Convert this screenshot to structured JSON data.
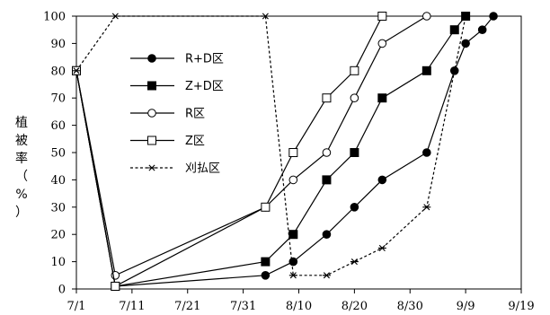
{
  "chart_data": {
    "type": "line",
    "title": "",
    "xlabel": "",
    "ylabel_chars": [
      "植",
      "被",
      "率",
      "（",
      "%",
      "）"
    ],
    "ylim": [
      0,
      100
    ],
    "yticks": [
      0,
      10,
      20,
      30,
      40,
      50,
      60,
      70,
      80,
      90,
      100
    ],
    "xlim": [
      "7/1",
      "9/19"
    ],
    "xticks": [
      "7/1",
      "7/11",
      "7/21",
      "7/31",
      "8/10",
      "8/20",
      "8/30",
      "9/9",
      "9/19"
    ],
    "legend_position": "left",
    "series": [
      {
        "name": "R+D区",
        "marker": "filled-circle",
        "line": "solid",
        "points": [
          {
            "x": "7/1",
            "y": 80
          },
          {
            "x": "7/8",
            "y": 1
          },
          {
            "x": "8/4",
            "y": 5
          },
          {
            "x": "8/9",
            "y": 10
          },
          {
            "x": "8/15",
            "y": 20
          },
          {
            "x": "8/20",
            "y": 30
          },
          {
            "x": "8/25",
            "y": 40
          },
          {
            "x": "9/2",
            "y": 50
          },
          {
            "x": "9/7",
            "y": 80
          },
          {
            "x": "9/9",
            "y": 90
          },
          {
            "x": "9/12",
            "y": 95
          },
          {
            "x": "9/14",
            "y": 100
          }
        ]
      },
      {
        "name": "Z+D区",
        "marker": "filled-square",
        "line": "solid",
        "points": [
          {
            "x": "7/1",
            "y": 80
          },
          {
            "x": "7/8",
            "y": 1
          },
          {
            "x": "8/4",
            "y": 10
          },
          {
            "x": "8/9",
            "y": 20
          },
          {
            "x": "8/15",
            "y": 40
          },
          {
            "x": "8/20",
            "y": 50
          },
          {
            "x": "8/25",
            "y": 70
          },
          {
            "x": "9/2",
            "y": 80
          },
          {
            "x": "9/7",
            "y": 95
          },
          {
            "x": "9/9",
            "y": 100
          }
        ]
      },
      {
        "name": "R区",
        "marker": "open-circle",
        "line": "solid",
        "points": [
          {
            "x": "7/1",
            "y": 80
          },
          {
            "x": "7/8",
            "y": 5
          },
          {
            "x": "8/4",
            "y": 30
          },
          {
            "x": "8/9",
            "y": 40
          },
          {
            "x": "8/15",
            "y": 50
          },
          {
            "x": "8/20",
            "y": 70
          },
          {
            "x": "8/25",
            "y": 90
          },
          {
            "x": "9/2",
            "y": 100
          }
        ]
      },
      {
        "name": "Z区",
        "marker": "open-square",
        "line": "solid",
        "points": [
          {
            "x": "7/1",
            "y": 80
          },
          {
            "x": "7/8",
            "y": 1
          },
          {
            "x": "8/4",
            "y": 30
          },
          {
            "x": "8/9",
            "y": 50
          },
          {
            "x": "8/15",
            "y": 70
          },
          {
            "x": "8/20",
            "y": 80
          },
          {
            "x": "8/25",
            "y": 100
          }
        ]
      },
      {
        "name": "刈払区",
        "marker": "asterisk",
        "line": "dashed",
        "points": [
          {
            "x": "7/1",
            "y": 80
          },
          {
            "x": "7/8",
            "y": 100
          },
          {
            "x": "8/4",
            "y": 100
          },
          {
            "x": "8/9",
            "y": 5
          },
          {
            "x": "8/15",
            "y": 5
          },
          {
            "x": "8/20",
            "y": 10
          },
          {
            "x": "8/25",
            "y": 15
          },
          {
            "x": "9/2",
            "y": 30
          },
          {
            "x": "9/7",
            "y": 80
          },
          {
            "x": "9/9",
            "y": 100
          }
        ]
      }
    ]
  }
}
